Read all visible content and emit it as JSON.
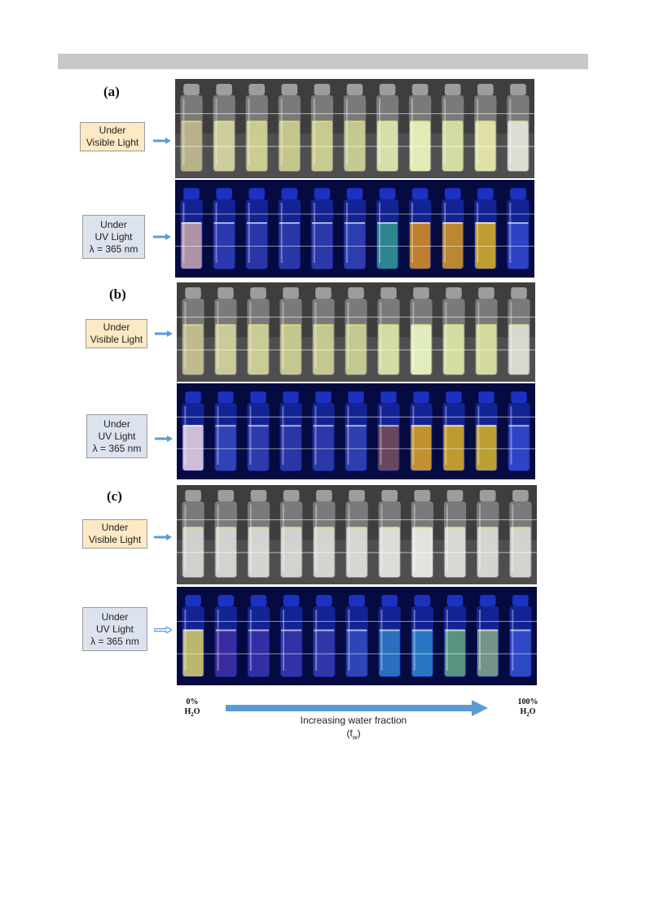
{
  "panels": [
    {
      "letter": "(a)",
      "visible_label": [
        "Under",
        "Visible Light"
      ],
      "uv_label": [
        "Under",
        "UV Light",
        "λ = 365 nm"
      ],
      "visible_liquid": [
        "#b9b48a",
        "#d2d19e",
        "#cfd08f",
        "#c7c98c",
        "#cccf8e",
        "#c9cc91",
        "#dbe3ad",
        "#e8f0b8",
        "#d8e0a4",
        "#e5e6a8",
        "#e0e4d8"
      ],
      "uv_liquid": [
        "#b89aa6",
        "#2b3bb0",
        "#2a38a8",
        "#2b39a8",
        "#2c3bab",
        "#2e3fb0",
        "#2e8c8e",
        "#c7852a",
        "#c48d2a",
        "#c8a42c",
        "#2d46c8"
      ]
    },
    {
      "letter": "(b)",
      "visible_label": [
        "Under",
        "Visible Light"
      ],
      "uv_label": [
        "Under",
        "UV Light",
        "λ = 365 nm"
      ],
      "visible_liquid": [
        "#c3be8e",
        "#cfcf9a",
        "#cfcf96",
        "#c9ca8f",
        "#c9cb8f",
        "#c6cc90",
        "#d6e0a4",
        "#e6f2c2",
        "#d8e3a4",
        "#d8de9e",
        "#d9ddd2"
      ],
      "uv_liquid": [
        "#d8c6dc",
        "#3344b8",
        "#2d3cad",
        "#2a38a6",
        "#2c3aa8",
        "#2f40b0",
        "#6e4a5a",
        "#c99a2a",
        "#c8a02c",
        "#c4a72e",
        "#2f47c8"
      ]
    },
    {
      "letter": "(c)",
      "visible_label": [
        "Under",
        "Visible Light"
      ],
      "uv_label": [
        "Under",
        "UV Light",
        "λ = 365 nm"
      ],
      "visible_liquid": [
        "#d4d4d0",
        "#d6d6d2",
        "#d8d8d4",
        "#d6d6d3",
        "#d8d8d5",
        "#dadad7",
        "#e0e0dc",
        "#e8e8e4",
        "#dcdcd8",
        "#d8d8d4",
        "#d6d6d2"
      ],
      "uv_liquid": [
        "#c4c06e",
        "#3a2ea0",
        "#3430a6",
        "#3434a6",
        "#3238ab",
        "#2f48b8",
        "#2a74c0",
        "#2a7cc6",
        "#5c9a7e",
        "#7a9a86",
        "#2f4cc8"
      ]
    }
  ],
  "scale": {
    "left_percent": "0%",
    "left_label": "H",
    "left_sub": "2",
    "left_suffix": "O",
    "right_percent": "100%",
    "right_label": "H",
    "right_sub": "2",
    "right_suffix": "O",
    "caption": "Increasing water fraction",
    "symbol": "(f",
    "symbol_sub": "w",
    "symbol_end": ")"
  },
  "colors": {
    "arrow_blue": "#5b9bd5",
    "visible_bg": "#3e3e3e",
    "uv_bg": "#050a40",
    "uv_glass": "#2038d8"
  }
}
